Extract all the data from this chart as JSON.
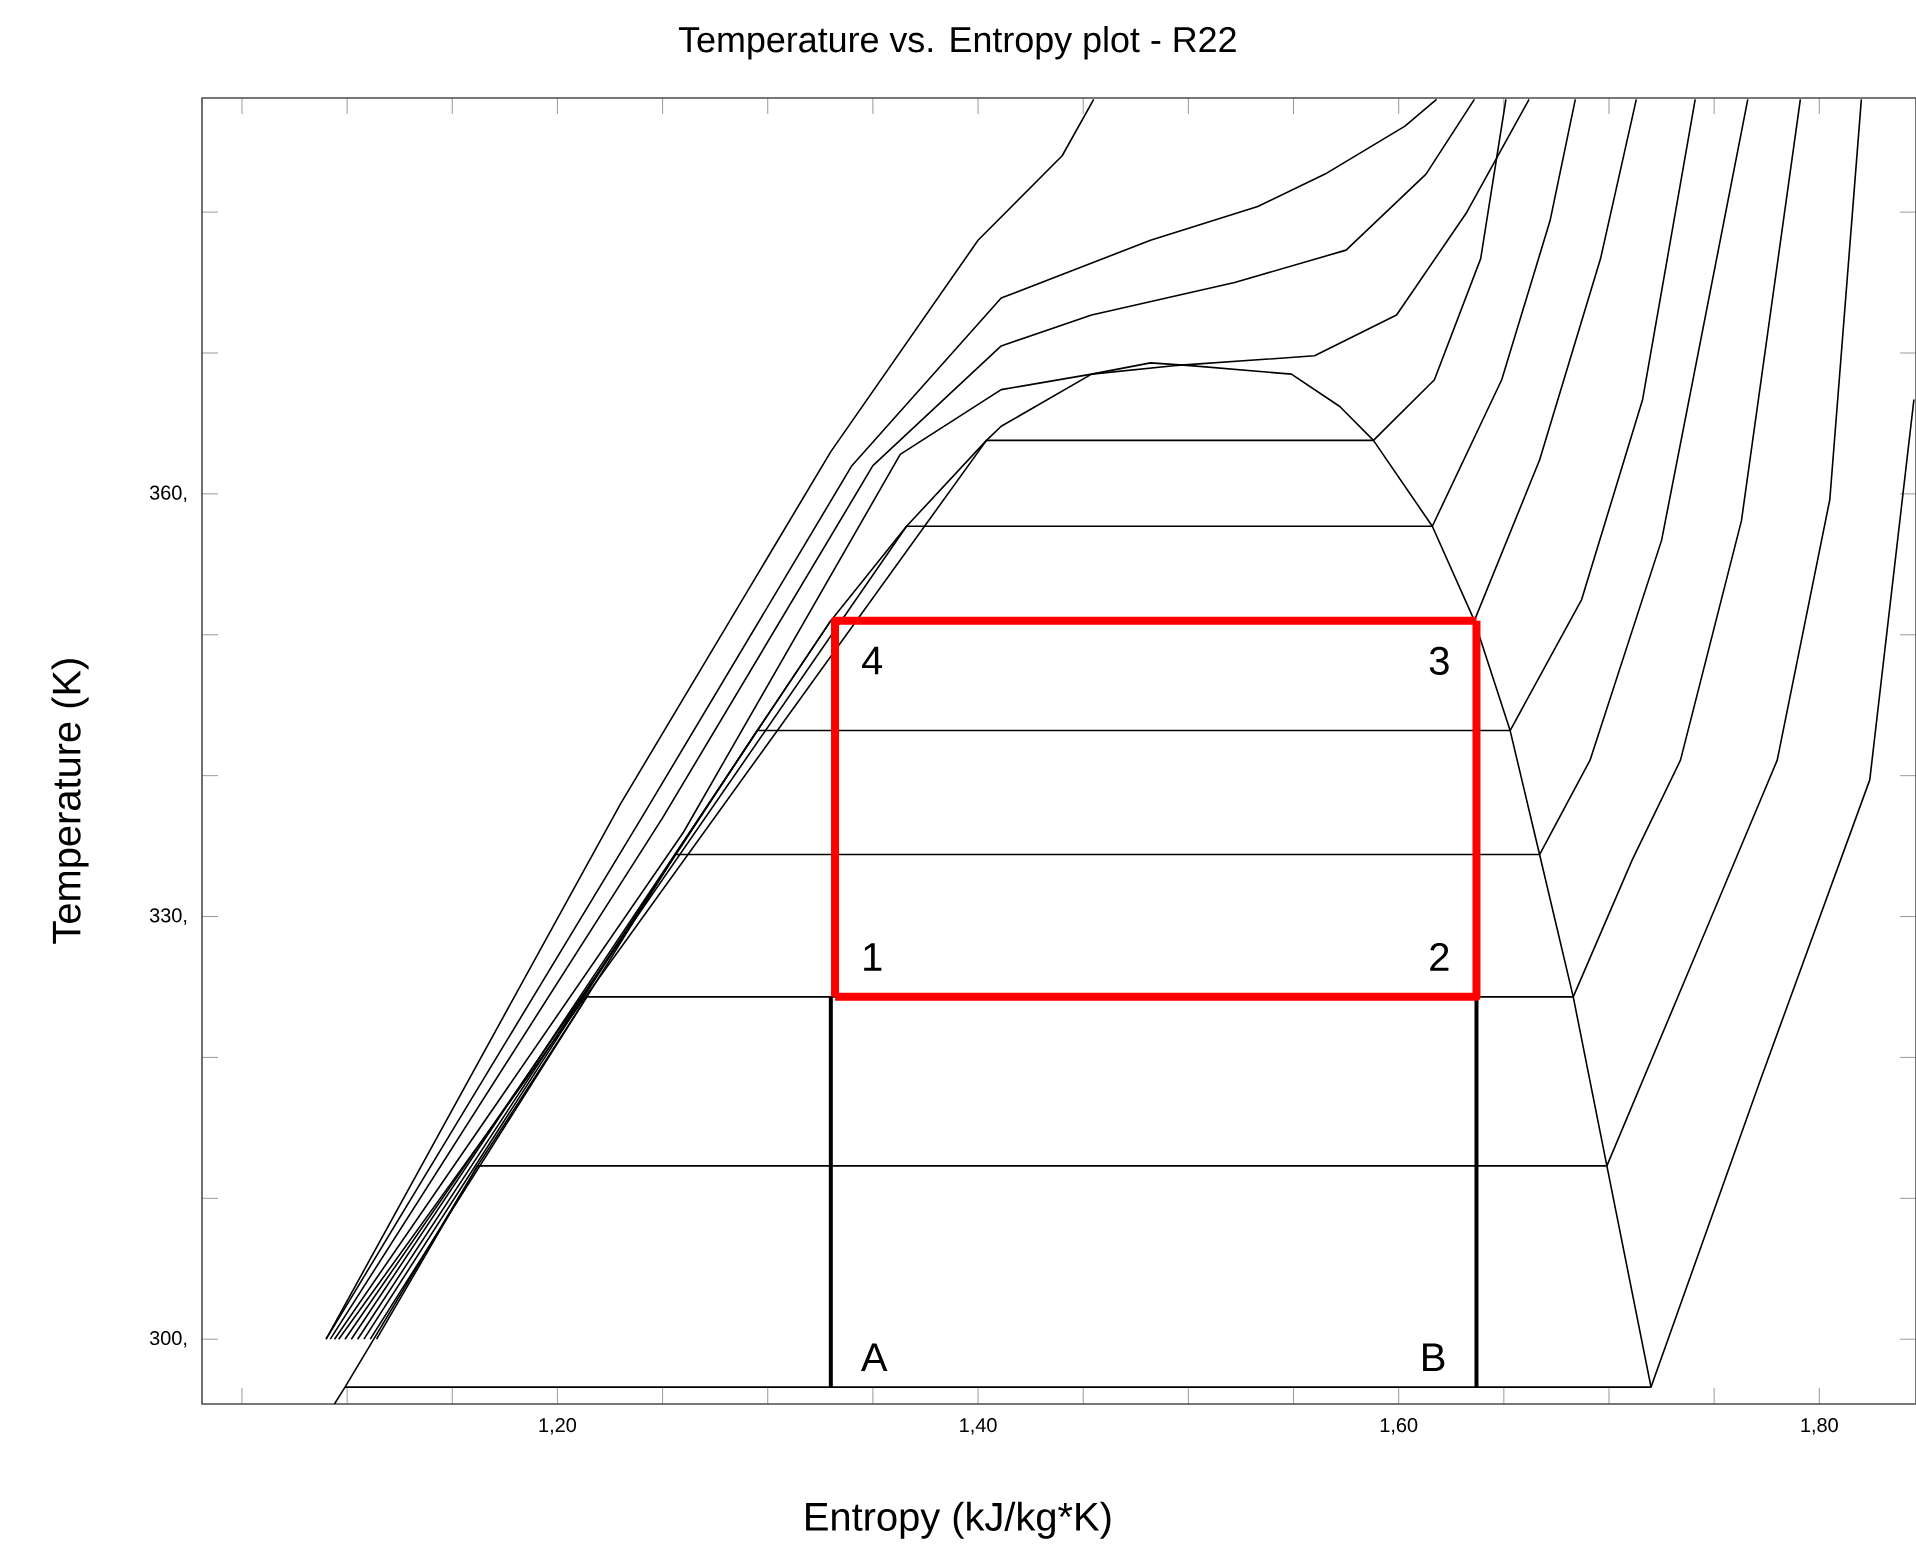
{
  "chart_data": {
    "type": "line",
    "title": "Temperature vs. Entropy plot - R22",
    "xlabel": "Entropy (kJ/kg*K)",
    "ylabel": "Temperature (K)",
    "color": "#000000",
    "grid": false,
    "marker": "none",
    "line_style": "solid",
    "xlim": [
      1.031,
      1.846
    ],
    "ylim": [
      295.4,
      388.1
    ],
    "xticks": [
      {
        "value": 1.05,
        "label": null
      },
      {
        "value": 1.1,
        "label": null
      },
      {
        "value": 1.15,
        "label": null
      },
      {
        "value": 1.2,
        "label": "1,20"
      },
      {
        "value": 1.25,
        "label": null
      },
      {
        "value": 1.3,
        "label": null
      },
      {
        "value": 1.35,
        "label": null
      },
      {
        "value": 1.4,
        "label": "1,40"
      },
      {
        "value": 1.45,
        "label": null
      },
      {
        "value": 1.5,
        "label": null
      },
      {
        "value": 1.55,
        "label": null
      },
      {
        "value": 1.6,
        "label": "1,60"
      },
      {
        "value": 1.65,
        "label": null
      },
      {
        "value": 1.7,
        "label": null
      },
      {
        "value": 1.75,
        "label": null
      },
      {
        "value": 1.8,
        "label": "1,80"
      }
    ],
    "yticks": [
      {
        "value": 300,
        "label": "300,"
      },
      {
        "value": 310,
        "label": null
      },
      {
        "value": 320,
        "label": null
      },
      {
        "value": 330,
        "label": "330,"
      },
      {
        "value": 340,
        "label": null
      },
      {
        "value": 350,
        "label": null
      },
      {
        "value": 360,
        "label": "360,"
      },
      {
        "value": 370,
        "label": null
      },
      {
        "value": 380,
        "label": null
      }
    ],
    "series": [
      {
        "x": [
          1.094,
          1.099,
          1.162,
          1.214,
          1.256,
          1.295,
          1.33,
          1.366,
          1.404,
          1.411,
          1.454,
          1.482,
          1.501,
          1.549,
          1.572,
          1.588,
          1.616,
          1.636,
          1.653,
          1.667,
          1.683,
          1.699,
          1.72
        ],
        "values": [
          295.4,
          296.6,
          312.3,
          324.3,
          334.4,
          343.2,
          351.0,
          357.7,
          363.8,
          364.8,
          368.5,
          369.3,
          369.1,
          368.5,
          366.2,
          363.8,
          357.7,
          351.0,
          343.2,
          334.4,
          324.3,
          312.3,
          296.6
        ]
      },
      {
        "x": [
          1.099,
          1.72,
          1.772,
          1.824,
          1.845
        ],
        "values": [
          296.6,
          296.6,
          318.4,
          339.7,
          366.7
        ]
      },
      {
        "x": [
          1.114,
          1.162,
          1.699,
          1.744,
          1.78,
          1.805,
          1.82
        ],
        "values": [
          300,
          312.3,
          312.3,
          328.3,
          341.1,
          359.6,
          388
        ]
      },
      {
        "x": [
          1.111,
          1.214,
          1.683,
          1.711,
          1.734,
          1.763,
          1.791
        ],
        "values": [
          300,
          324.3,
          324.3,
          334.0,
          341.1,
          358.1,
          388
        ]
      },
      {
        "x": [
          1.108,
          1.256,
          1.667,
          1.691,
          1.725,
          1.766
        ],
        "values": [
          300,
          334.4,
          334.4,
          341.1,
          356.7,
          388
        ]
      },
      {
        "x": [
          1.105,
          1.295,
          1.653,
          1.687,
          1.716,
          1.741
        ],
        "values": [
          300,
          343.2,
          343.2,
          352.5,
          366.7,
          388
        ]
      },
      {
        "x": [
          1.102,
          1.33,
          1.636,
          1.667,
          1.696,
          1.713
        ],
        "values": [
          300,
          351.0,
          351.0,
          362.4,
          376.7,
          388
        ]
      },
      {
        "x": [
          1.099,
          1.366,
          1.616,
          1.649,
          1.672,
          1.684
        ],
        "values": [
          300,
          357.7,
          357.7,
          368.1,
          379.4,
          388
        ]
      },
      {
        "x": [
          1.096,
          1.404,
          1.588,
          1.617,
          1.639,
          1.651
        ],
        "values": [
          300,
          363.8,
          363.8,
          368.1,
          376.7,
          388
        ]
      },
      {
        "x": [
          1.094,
          1.26,
          1.363,
          1.411,
          1.454,
          1.493,
          1.56,
          1.599,
          1.632,
          1.662
        ],
        "values": [
          300,
          336,
          362.8,
          367.4,
          368.5,
          369.1,
          369.8,
          372.7,
          379.9,
          388
        ]
      },
      {
        "x": [
          1.092,
          1.25,
          1.35,
          1.411,
          1.454,
          1.522,
          1.575,
          1.613,
          1.636
        ],
        "values": [
          300,
          337,
          362,
          370.5,
          372.7,
          375.0,
          377.3,
          382.7,
          388
        ]
      },
      {
        "x": [
          1.09,
          1.24,
          1.34,
          1.411,
          1.482,
          1.533,
          1.565,
          1.603,
          1.618
        ],
        "values": [
          300,
          337,
          362,
          373.9,
          378.0,
          380.4,
          382.7,
          386.1,
          388
        ]
      },
      {
        "x": [
          1.09,
          1.23,
          1.33,
          1.4,
          1.44,
          1.455
        ],
        "values": [
          300,
          338,
          363,
          378,
          384,
          388
        ]
      },
      {
        "x": [
          1.33,
          1.33
        ],
        "values": [
          296.6,
          324.3
        ]
      },
      {
        "x": [
          1.637,
          1.637
        ],
        "values": [
          296.6,
          324.3
        ]
      },
      {
        "color": "#ff0000",
        "x": [
          1.332,
          1.332,
          1.637
        ],
        "values": [
          324.3,
          351.0,
          351.0
        ]
      },
      {
        "color": "#ff0000",
        "x": [
          1.332,
          1.637,
          1.637
        ],
        "values": [
          324.3,
          324.3,
          351.0
        ]
      }
    ],
    "annotations": [
      "1",
      "2",
      "3",
      "4",
      "A",
      "B"
    ]
  }
}
